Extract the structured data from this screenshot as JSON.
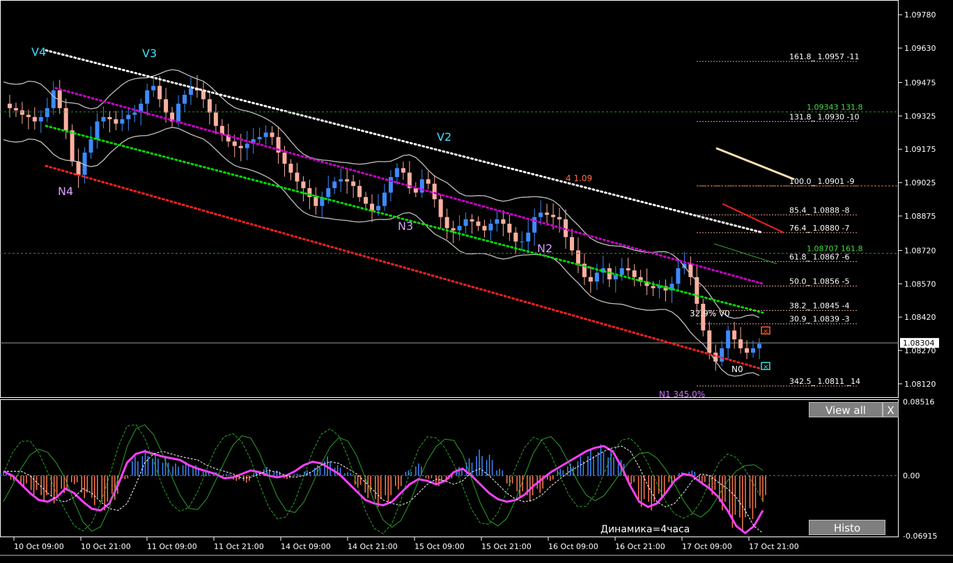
{
  "chart_data": [
    {
      "type": "candlestick",
      "title": "",
      "price_axis_ticks": [
        "1.09780",
        "1.09630",
        "1.09475",
        "1.09325",
        "1.09175",
        "1.09025",
        "1.08875",
        "1.08720",
        "1.08570",
        "1.08420",
        "1.08270",
        "1.08120"
      ],
      "current_price": "1.08304",
      "time_axis_ticks": [
        "10 Oct 09:00",
        "10 Oct 21:00",
        "11 Oct 09:00",
        "11 Oct 21:00",
        "14 Oct 09:00",
        "14 Oct 21:00",
        "15 Oct 09:00",
        "15 Oct 21:00",
        "16 Oct 09:00",
        "16 Oct 21:00",
        "17 Oct 09:00",
        "17 Oct 21:00"
      ],
      "ylim": [
        1.0806,
        1.0984
      ],
      "close_path": [
        1.0938,
        1.0936,
        1.0935,
        1.0933,
        1.0932,
        1.093,
        1.0932,
        1.0936,
        1.0944,
        1.0936,
        1.0926,
        1.0912,
        1.0906,
        1.0916,
        1.0922,
        1.093,
        1.0932,
        1.0931,
        1.0929,
        1.0931,
        1.0933,
        1.0934,
        1.0938,
        1.0944,
        1.0946,
        1.094,
        1.0934,
        1.093,
        1.0938,
        1.0942,
        1.0945,
        1.0944,
        1.094,
        1.0934,
        1.0928,
        1.0924,
        1.0921,
        1.0919,
        1.0918,
        1.092,
        1.0922,
        1.0923,
        1.0925,
        1.0923,
        1.0916,
        1.0911,
        1.0907,
        1.0903,
        1.09,
        1.0896,
        1.0892,
        1.0896,
        1.09,
        1.0903,
        1.0904,
        1.0903,
        1.0901,
        1.0896,
        1.0893,
        1.089,
        1.0892,
        1.0898,
        1.0905,
        1.0909,
        1.0907,
        1.09,
        1.0898,
        1.0904,
        1.0902,
        1.0895,
        1.0887,
        1.0882,
        1.0881,
        1.0883,
        1.0886,
        1.0885,
        1.0883,
        1.0881,
        1.0884,
        1.0886,
        1.0884,
        1.088,
        1.0876,
        1.0876,
        1.088,
        1.0887,
        1.0889,
        1.0888,
        1.0887,
        1.0886,
        1.0878,
        1.0872,
        1.0866,
        1.086,
        1.0858,
        1.0862,
        1.0864,
        1.0859,
        1.0861,
        1.0864,
        1.0863,
        1.086,
        1.0858,
        1.0856,
        1.0855,
        1.0856,
        1.0854,
        1.0857,
        1.0864,
        1.0866,
        1.086,
        1.0848,
        1.0836,
        1.0826,
        1.0822,
        1.0828,
        1.0836,
        1.0832,
        1.0828,
        1.0826,
        1.0828,
        1.083
      ],
      "markers": [
        {
          "label": "V4",
          "color": "#40e0ff"
        },
        {
          "label": "V3",
          "color": "#40e0ff"
        },
        {
          "label": "V2",
          "color": "#40e0ff"
        },
        {
          "label": "N4",
          "color": "#d8a0ff"
        },
        {
          "label": "N3",
          "color": "#d8a0ff"
        },
        {
          "label": "N2",
          "color": "#d8a0ff"
        },
        {
          "label": "N0",
          "color": "#ffffff"
        },
        {
          "label": "N1 345.0%",
          "color": "#d070ff"
        },
        {
          "label": "4 1.09",
          "color": "#ff6a3c"
        },
        {
          "label": "32.9%  V0",
          "color": "#ffffff"
        }
      ],
      "fib_levels": [
        {
          "text": "161.8_ 1.0957 -11",
          "price": 1.0957
        },
        {
          "text": "131.8_ 1.0930 -10",
          "price": 1.093
        },
        {
          "text": "100.0_ 1.0901 -9",
          "price": 1.0901
        },
        {
          "text": "85.4_ 1.0888 -8",
          "price": 1.0888
        },
        {
          "text": "76.4_ 1.0880 -7",
          "price": 1.088
        },
        {
          "text": "61.8_ 1.0867 -6",
          "price": 1.0867
        },
        {
          "text": "50.0_ 1.0856 -5",
          "price": 1.0856
        },
        {
          "text": "38.2_ 1.0845 -4",
          "price": 1.0845
        },
        {
          "text": "30.9_ 1.0839 -3",
          "price": 1.0839
        },
        {
          "text": "342.5_ 1.0811 _14",
          "price": 1.0811
        }
      ],
      "target_levels": [
        {
          "text": "1.09343  131.8",
          "price": 1.09343
        },
        {
          "text": "1.08707  161.8",
          "price": 1.08707
        }
      ]
    },
    {
      "type": "oscillator",
      "title": "",
      "ticks": [
        "0.08516",
        "0.00",
        "-0.06915"
      ],
      "ylim": [
        -0.07,
        0.087
      ],
      "main_line": [
        0.005,
        0.0,
        -0.01,
        -0.02,
        -0.028,
        -0.03,
        -0.025,
        -0.015,
        -0.02,
        -0.03,
        -0.038,
        -0.04,
        -0.032,
        -0.01,
        0.015,
        0.025,
        0.028,
        0.025,
        0.022,
        0.02,
        0.018,
        0.012,
        0.008,
        0.005,
        0.002,
        -0.003,
        -0.002,
        0.002,
        0.006,
        0.004,
        0.0,
        -0.002,
        0.0,
        0.005,
        0.012,
        0.016,
        0.014,
        0.008,
        0.002,
        -0.008,
        -0.018,
        -0.028,
        -0.032,
        -0.034,
        -0.03,
        -0.02,
        -0.01,
        -0.004,
        -0.006,
        -0.01,
        -0.006,
        0.004,
        0.008,
        0.0,
        -0.01,
        -0.02,
        -0.027,
        -0.03,
        -0.028,
        -0.022,
        -0.012,
        -0.004,
        0.004,
        0.01,
        0.016,
        0.022,
        0.028,
        0.032,
        0.034,
        0.028,
        0.01,
        -0.012,
        -0.03,
        -0.036,
        -0.032,
        -0.02,
        -0.006,
        0.002,
        0.0,
        -0.008,
        -0.015,
        -0.025,
        -0.04,
        -0.058,
        -0.066,
        -0.058,
        -0.04
      ],
      "histogram": [
        0.004,
        -0.006,
        -0.012,
        -0.022,
        -0.03,
        -0.032,
        -0.02,
        -0.01,
        -0.026,
        -0.034,
        -0.04,
        -0.028,
        -0.004,
        0.022,
        0.03,
        0.026,
        0.02,
        0.014,
        0.016,
        0.012,
        0.006,
        0.004,
        0.002,
        -0.006,
        -0.008,
        0.004,
        0.01,
        0.006,
        -0.004,
        0.002,
        0.006,
        0.012,
        0.022,
        0.012,
        0.004,
        -0.014,
        -0.026,
        -0.036,
        -0.03,
        -0.016,
        0.006,
        0.014,
        -0.004,
        -0.012,
        -0.004,
        0.01,
        0.02,
        0.03,
        0.024,
        0.008,
        -0.012,
        -0.024,
        -0.03,
        -0.02,
        -0.006,
        0.008,
        0.014,
        0.022,
        0.03,
        0.036,
        0.028,
        0.018,
        -0.01,
        -0.036,
        -0.04,
        -0.028,
        -0.01,
        0.004,
        0.006,
        -0.01,
        -0.022,
        -0.04,
        -0.06,
        -0.064,
        -0.05,
        -0.03
      ],
      "annotation": "Динамика=4часа"
    }
  ],
  "buttons": {
    "view_all": "View all",
    "close": "X",
    "histo": "Histo"
  },
  "colors": {
    "bull": "#3d8bff",
    "bear": "#ffb0a0",
    "magenta": "#cc00cc",
    "green_dots": "#00dd00",
    "red_dots": "#ff2020",
    "white_dots": "#ffffff",
    "band": "#c0c0c0"
  }
}
